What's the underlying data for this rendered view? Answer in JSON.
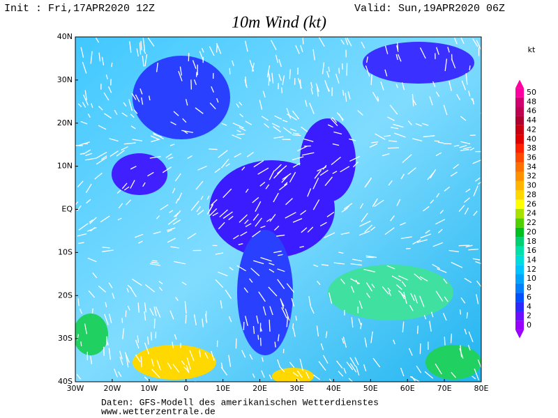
{
  "header": {
    "init": "Init : Fri,17APR2020 12Z",
    "valid": "Valid: Sun,19APR2020 06Z",
    "title": "10m Wind (kt)"
  },
  "map": {
    "lat_labels": [
      "40N",
      "30N",
      "20N",
      "10N",
      "EQ",
      "10S",
      "20S",
      "30S",
      "40S"
    ],
    "lon_labels": [
      "30W",
      "20W",
      "10W",
      "0",
      "10E",
      "20E",
      "30E",
      "40E",
      "50E",
      "60E",
      "70E",
      "80E"
    ]
  },
  "colorbar": {
    "unit": "kt",
    "labels": [
      0,
      2,
      4,
      6,
      8,
      10,
      12,
      14,
      16,
      18,
      20,
      22,
      24,
      26,
      28,
      30,
      32,
      34,
      36,
      38,
      40,
      42,
      44,
      46,
      48,
      50
    ],
    "colors": [
      "#9a00ff",
      "#6a10ff",
      "#2a2aff",
      "#0050ff",
      "#0080ff",
      "#00a4ff",
      "#00c4ff",
      "#00dcdc",
      "#00e0a8",
      "#00d070",
      "#00c020",
      "#50d000",
      "#a8e000",
      "#ffff00",
      "#ffd800",
      "#ffb400",
      "#ff9000",
      "#ff7000",
      "#ff4800",
      "#ff2000",
      "#e00000",
      "#c80010",
      "#b00030",
      "#c00050",
      "#d00070",
      "#ff00a0"
    ]
  },
  "footer": {
    "line1": "Daten: GFS-Modell des amerikanischen Wetterdienstes",
    "line2": "www.wetterzentrale.de"
  }
}
